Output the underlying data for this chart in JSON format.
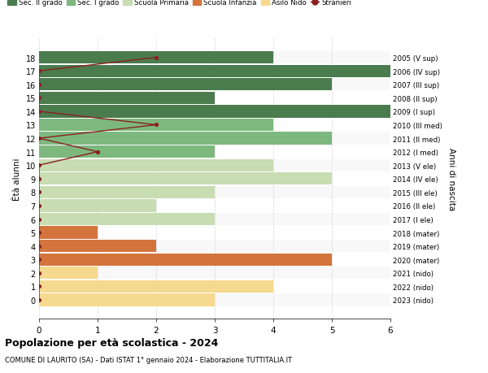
{
  "ages": [
    18,
    17,
    16,
    15,
    14,
    13,
    12,
    11,
    10,
    9,
    8,
    7,
    6,
    5,
    4,
    3,
    2,
    1,
    0
  ],
  "right_labels": [
    "2005 (V sup)",
    "2006 (IV sup)",
    "2007 (III sup)",
    "2008 (II sup)",
    "2009 (I sup)",
    "2010 (III med)",
    "2011 (II med)",
    "2012 (I med)",
    "2013 (V ele)",
    "2014 (IV ele)",
    "2015 (III ele)",
    "2016 (II ele)",
    "2017 (I ele)",
    "2018 (mater)",
    "2019 (mater)",
    "2020 (mater)",
    "2021 (nido)",
    "2022 (nido)",
    "2023 (nido)"
  ],
  "bar_values": [
    4,
    6,
    5,
    3,
    6,
    4,
    5,
    3,
    4,
    5,
    3,
    2,
    3,
    1,
    2,
    5,
    1,
    4,
    3
  ],
  "bar_colors": [
    "#4a7c4e",
    "#4a7c4e",
    "#4a7c4e",
    "#4a7c4e",
    "#4a7c4e",
    "#7db87e",
    "#7db87e",
    "#7db87e",
    "#c8ddb2",
    "#c8ddb2",
    "#c8ddb2",
    "#c8ddb2",
    "#c8ddb2",
    "#d4743d",
    "#d4743d",
    "#d4743d",
    "#f5d98e",
    "#f5d98e",
    "#f5d98e"
  ],
  "stranieri_values": [
    2,
    0,
    0,
    0,
    0,
    2,
    0,
    1,
    0,
    0,
    0,
    0,
    0,
    0,
    0,
    0,
    0,
    0,
    0
  ],
  "stranieri_color": "#8b2020",
  "legend_items": [
    {
      "label": "Sec. II grado",
      "color": "#4a7c4e"
    },
    {
      "label": "Sec. I grado",
      "color": "#7db87e"
    },
    {
      "label": "Scuola Primaria",
      "color": "#c8ddb2"
    },
    {
      "label": "Scuola Infanzia",
      "color": "#d4743d"
    },
    {
      "label": "Asilo Nido",
      "color": "#f5d98e"
    },
    {
      "label": "Stranieri",
      "color": "#8b2020"
    }
  ],
  "ylabel_left": "Ètà alunni",
  "ylabel_right": "Anni di nascita",
  "title": "Popolazione per età scolastica - 2024",
  "subtitle": "COMUNE DI LAURITO (SA) - Dati ISTAT 1° gennaio 2024 - Elaborazione TUTTITALIA.IT",
  "xlim": [
    0,
    6
  ],
  "xticks": [
    0,
    1,
    2,
    3,
    4,
    5,
    6
  ],
  "background_color": "#ffffff",
  "grid_color": "#cccccc",
  "bar_height": 0.92
}
